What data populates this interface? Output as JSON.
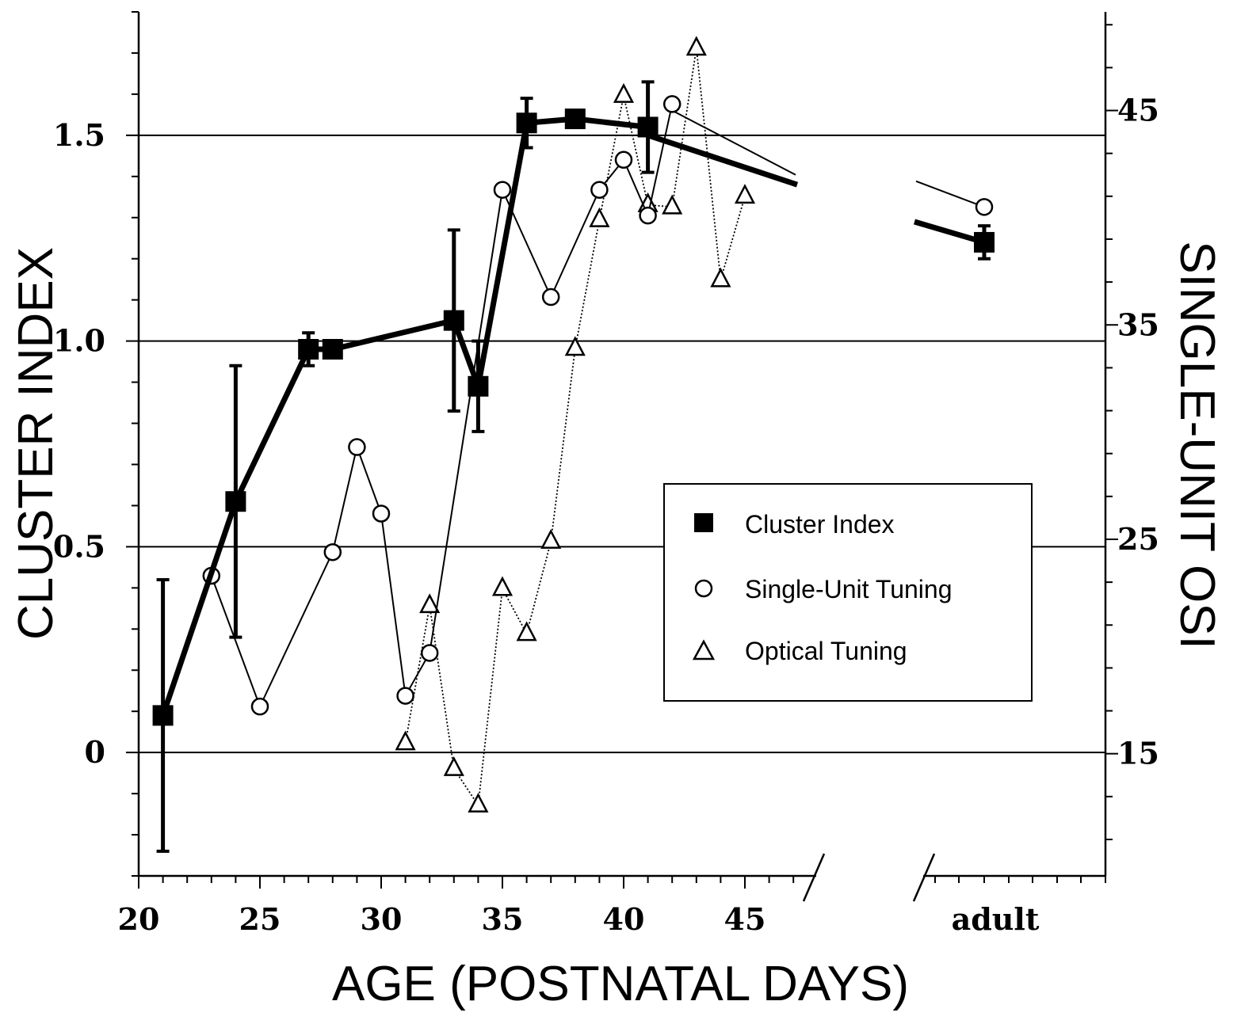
{
  "chart_data": {
    "type": "line",
    "xlabel": "AGE (POSTNATAL DAYS)",
    "ylabel_left": "CLUSTER INDEX",
    "ylabel_right": "SINGLE-UNIT OSI",
    "x_ticks": [
      "20",
      "25",
      "30",
      "35",
      "40",
      "45"
    ],
    "x_extra_tick": "adult",
    "y_left_ticks": [
      "0",
      "0.5",
      "1.0",
      "1.5"
    ],
    "y_right_ticks": [
      "15",
      "25",
      "35",
      "45"
    ],
    "xlim": [
      20,
      60
    ],
    "ylim_left": [
      -0.3,
      1.8
    ],
    "ylim_right": [
      9.3,
      49.6
    ],
    "grid": "horizontal",
    "legend_position": "right-middle",
    "series": [
      {
        "name": "Cluster Index",
        "axis": "left",
        "marker": "filled-square",
        "x": [
          21,
          24,
          27,
          28,
          33,
          34,
          36,
          38,
          41,
          "adult"
        ],
        "values": [
          0.09,
          0.61,
          0.98,
          0.98,
          1.05,
          0.89,
          1.53,
          1.54,
          1.52,
          1.24
        ],
        "error": [
          0.33,
          0.33,
          0.04,
          0,
          0.22,
          0.11,
          0.06,
          0,
          0.11,
          0.04
        ],
        "trend_after_41": [
          1.5,
          1.38
        ],
        "trend_before_adult": [
          1.29,
          1.24
        ]
      },
      {
        "name": "Single-Unit Tuning",
        "axis": "right",
        "marker": "open-circle",
        "x": [
          23,
          25,
          28,
          29,
          30,
          31,
          32,
          35,
          37,
          39,
          40,
          41,
          42,
          "adult"
        ],
        "values": [
          23.3,
          17.2,
          24.4,
          29.3,
          26.2,
          17.7,
          19.7,
          41.3,
          36.3,
          41.3,
          42.7,
          40.1,
          45.3,
          40.5
        ],
        "trend_after_42": [
          45.0,
          42.0
        ],
        "trend_before_adult": [
          41.7,
          40.5
        ]
      },
      {
        "name": "Optical Tuning",
        "axis": "right",
        "marker": "open-triangle",
        "x": [
          31,
          32,
          33,
          34,
          35,
          36,
          37,
          38,
          39,
          40,
          41,
          42,
          43,
          44,
          45
        ],
        "values": [
          15.5,
          21.9,
          14.3,
          12.6,
          22.7,
          20.6,
          24.9,
          33.9,
          39.9,
          45.7,
          40.6,
          40.5,
          47.9,
          37.1,
          41.0
        ]
      }
    ]
  }
}
